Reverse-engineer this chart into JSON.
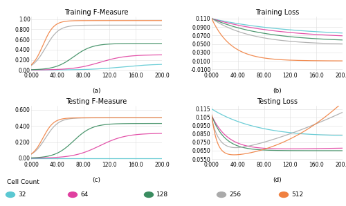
{
  "colors": {
    "32": "#5BC8D2",
    "64": "#E040A0",
    "128": "#3A8C60",
    "256": "#AAAAAA",
    "512": "#F08040"
  },
  "x_max": 200,
  "n_points": 300,
  "subplot_labels": [
    "(a)",
    "(b)",
    "(c)",
    "(d)"
  ],
  "titles": [
    "Training F-Measure",
    "Training Loss",
    "Testing F-Measure",
    "Testing Loss"
  ],
  "legend_labels": [
    "32",
    "64",
    "128",
    "256",
    "512"
  ],
  "legend_title": "Cell Count",
  "grid_color": "#dddddd",
  "title_fontsize": 7,
  "label_fontsize": 6.5,
  "tick_fontsize": 5.5
}
